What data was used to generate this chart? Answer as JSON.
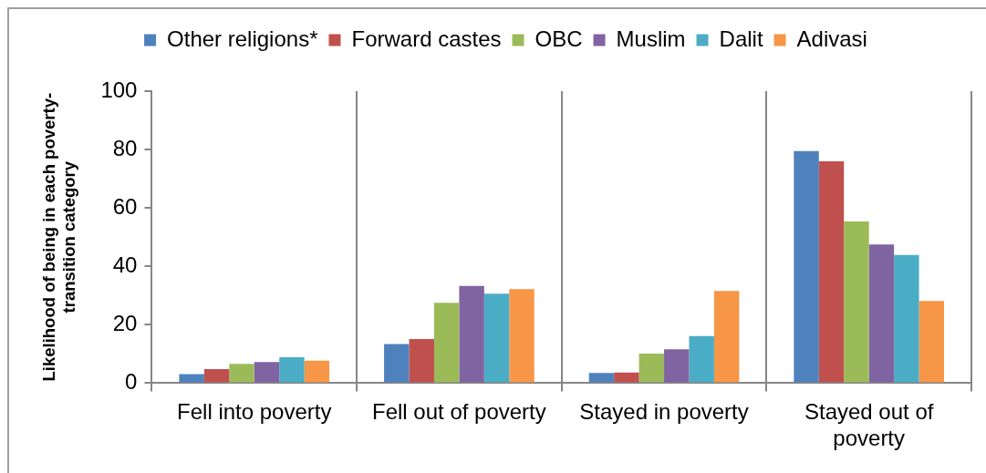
{
  "chart_data": {
    "type": "bar",
    "ylabel": "Likelihood of being in each poverty-transition category",
    "categories": [
      "Fell into poverty",
      "Fell out of poverty",
      "Stayed in poverty",
      "Stayed out of poverty"
    ],
    "series": [
      {
        "name": "Other religions*",
        "color": "#4f81bd",
        "values": [
          3.1,
          13.4,
          3.5,
          79.5
        ]
      },
      {
        "name": "Forward castes",
        "color": "#c0504d",
        "values": [
          4.8,
          15.1,
          3.6,
          76.0
        ]
      },
      {
        "name": "OBC",
        "color": "#9bbb59",
        "values": [
          6.6,
          27.5,
          10.1,
          55.4
        ]
      },
      {
        "name": "Muslim",
        "color": "#8064a2",
        "values": [
          7.2,
          33.3,
          11.6,
          47.5
        ]
      },
      {
        "name": "Dalit",
        "color": "#4bacc6",
        "values": [
          8.9,
          30.6,
          16.1,
          43.9
        ]
      },
      {
        "name": "Adivasi",
        "color": "#f79646",
        "values": [
          7.7,
          32.2,
          31.6,
          28.1
        ]
      }
    ],
    "ylim": [
      0,
      100
    ],
    "yticks": [
      0,
      20,
      40,
      60,
      80,
      100
    ],
    "grid": "x",
    "legend": "top"
  }
}
